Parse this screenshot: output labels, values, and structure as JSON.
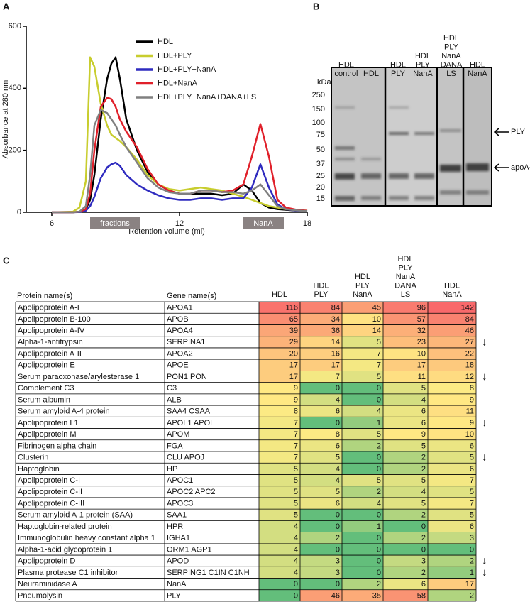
{
  "chart_data": {
    "type": "line",
    "panel_label": "A",
    "xlabel": "Retention volume (ml)",
    "ylabel": "Absorbance at 280 nm",
    "x": [
      6,
      7,
      7.3,
      7.6,
      7.8,
      8.0,
      8.3,
      8.6,
      8.8,
      9.0,
      9.2,
      9.5,
      10,
      10.5,
      11,
      11.5,
      12,
      12.5,
      13,
      13.5,
      14,
      14.5,
      15,
      15.4,
      15.8,
      16.2,
      16.6,
      17,
      17.5,
      18
    ],
    "series": [
      {
        "name": "HDL",
        "color": "#000000",
        "values": [
          0,
          0,
          2,
          10,
          40,
          120,
          300,
          430,
          480,
          500,
          430,
          300,
          200,
          130,
          90,
          70,
          60,
          60,
          60,
          60,
          55,
          60,
          90,
          70,
          30,
          15,
          10,
          8,
          5,
          5
        ]
      },
      {
        "name": "HDL+PLY",
        "color": "#c8cd2e",
        "values": [
          0,
          2,
          15,
          100,
          500,
          470,
          350,
          280,
          250,
          240,
          230,
          210,
          170,
          120,
          90,
          75,
          70,
          75,
          80,
          75,
          70,
          60,
          50,
          40,
          30,
          20,
          15,
          10,
          7,
          5
        ]
      },
      {
        "name": "HDL+PLY+NanA",
        "color": "#2f2bbf",
        "values": [
          0,
          0,
          1,
          5,
          20,
          50,
          110,
          145,
          155,
          160,
          150,
          120,
          90,
          70,
          55,
          45,
          40,
          40,
          45,
          45,
          40,
          45,
          45,
          80,
          155,
          80,
          25,
          10,
          5,
          3
        ]
      },
      {
        "name": "HDL+NanA",
        "color": "#e0202a",
        "values": [
          0,
          0,
          2,
          10,
          60,
          200,
          340,
          370,
          365,
          340,
          300,
          260,
          210,
          140,
          90,
          70,
          60,
          60,
          70,
          70,
          65,
          70,
          90,
          180,
          285,
          180,
          40,
          15,
          8,
          5
        ]
      },
      {
        "name": "HDL+PLY+NanA+DANA+LS",
        "color": "#808080",
        "values": [
          0,
          0,
          2,
          20,
          120,
          280,
          330,
          320,
          300,
          280,
          250,
          210,
          160,
          110,
          80,
          65,
          60,
          60,
          70,
          70,
          65,
          65,
          60,
          70,
          90,
          55,
          20,
          10,
          6,
          4
        ]
      }
    ],
    "xlim": [
      4.8,
      18
    ],
    "xticks": [
      6,
      12,
      18
    ],
    "ylim": [
      0,
      600
    ],
    "yticks": [
      0,
      200,
      400,
      600
    ],
    "annotations": [
      "fractions",
      "NanA"
    ]
  },
  "gel": {
    "panel_label": "B",
    "unit": "kDa",
    "markers": [
      250,
      150,
      100,
      75,
      50,
      37,
      25,
      20,
      15
    ],
    "lanes": [
      [
        "HDL",
        "control"
      ],
      [
        "HDL"
      ],
      [
        "HDL",
        "PLY"
      ],
      [
        "HDL",
        "PLY",
        "NanA"
      ],
      [
        "HDL",
        "PLY",
        "NanA",
        "DANA",
        "LS"
      ],
      [
        "HDL",
        "NanA"
      ]
    ],
    "arrows": [
      "PLY",
      "apoA-I"
    ]
  },
  "table": {
    "panel_label": "C",
    "name_header": "Protein name(s)",
    "gene_header": "Gene name(s)",
    "sample_headers": [
      [
        "HDL"
      ],
      [
        "HDL",
        "PLY"
      ],
      [
        "HDL",
        "PLY",
        "NanA"
      ],
      [
        "HDL",
        "PLY",
        "NanA",
        "DANA",
        "LS"
      ],
      [
        "HDL",
        "NanA"
      ]
    ],
    "rows": [
      {
        "protein": "Apolipoprotein A-I",
        "gene": "APOA1",
        "values": [
          116,
          84,
          45,
          96,
          142
        ]
      },
      {
        "protein": "Apolipoprotein B-100",
        "gene": "APOB",
        "values": [
          65,
          34,
          10,
          57,
          84
        ]
      },
      {
        "protein": "Apolipoprotein A-IV",
        "gene": "APOA4",
        "values": [
          39,
          36,
          14,
          32,
          46
        ]
      },
      {
        "protein": "Alpha-1-antitrypsin",
        "gene": "SERPINA1",
        "values": [
          29,
          14,
          5,
          23,
          27
        ],
        "flag": "↓"
      },
      {
        "protein": "Apolipoprotein A-II",
        "gene": "APOA2",
        "values": [
          20,
          16,
          7,
          10,
          22
        ]
      },
      {
        "protein": "Apolipoprotein E",
        "gene": "APOE",
        "values": [
          17,
          17,
          7,
          17,
          18
        ]
      },
      {
        "protein": "Serum paraoxonase/arylesterase 1",
        "gene": "PON1 PON",
        "values": [
          17,
          7,
          5,
          11,
          12
        ],
        "flag": "↓"
      },
      {
        "protein": "Complement C3",
        "gene": "C3",
        "values": [
          9,
          0,
          0,
          5,
          8
        ]
      },
      {
        "protein": "Serum albumin",
        "gene": "ALB",
        "values": [
          9,
          4,
          0,
          4,
          9
        ]
      },
      {
        "protein": "Serum amyloid A-4 protein",
        "gene": "SAA4 CSAA",
        "values": [
          8,
          6,
          4,
          6,
          11
        ]
      },
      {
        "protein": "Apolipoprotein L1",
        "gene": "APOL1 APOL",
        "values": [
          7,
          0,
          1,
          6,
          9
        ],
        "flag": "↓"
      },
      {
        "protein": "Apolipoprotein M",
        "gene": "APOM",
        "values": [
          7,
          8,
          5,
          9,
          10
        ]
      },
      {
        "protein": "Fibrinogen alpha chain",
        "gene": "FGA",
        "values": [
          7,
          6,
          2,
          5,
          6
        ]
      },
      {
        "protein": "Clusterin",
        "gene": "CLU APOJ",
        "values": [
          7,
          5,
          0,
          2,
          5
        ],
        "flag": "↓"
      },
      {
        "protein": "Haptoglobin",
        "gene": "HP",
        "values": [
          5,
          4,
          0,
          2,
          6
        ]
      },
      {
        "protein": "Apolipoprotein C-I",
        "gene": "APOC1",
        "values": [
          5,
          4,
          5,
          5,
          7
        ]
      },
      {
        "protein": "Apolipoprotein C-II",
        "gene": "APOC2 APC2",
        "values": [
          5,
          5,
          2,
          4,
          5
        ]
      },
      {
        "protein": "Apolipoprotein C-III",
        "gene": "APOC3",
        "values": [
          5,
          6,
          4,
          5,
          7
        ]
      },
      {
        "protein": "Serum amyloid A-1 protein (SAA)",
        "gene": "SAA1",
        "values": [
          5,
          0,
          0,
          2,
          5
        ]
      },
      {
        "protein": "Haptoglobin-related protein",
        "gene": "HPR",
        "values": [
          4,
          0,
          1,
          0,
          6
        ]
      },
      {
        "protein": "Immunoglobulin heavy constant alpha 1",
        "gene": "IGHA1",
        "values": [
          4,
          2,
          0,
          2,
          3
        ]
      },
      {
        "protein": "Alpha-1-acid glycoprotein 1",
        "gene": "ORM1 AGP1",
        "values": [
          4,
          0,
          0,
          0,
          0
        ]
      },
      {
        "protein": "Apolipoprotein D",
        "gene": "APOD",
        "values": [
          4,
          3,
          0,
          3,
          2
        ],
        "flag": "↓"
      },
      {
        "protein": "Plasma protease C1 inhibitor",
        "gene": "SERPING1 C1IN C1NH",
        "values": [
          4,
          3,
          0,
          2,
          1
        ],
        "flag": "↓"
      },
      {
        "protein": "Neuraminidase A",
        "gene": "NanA",
        "values": [
          0,
          0,
          2,
          6,
          17
        ]
      },
      {
        "protein": "Pneumolysin",
        "gene": "PLY",
        "values": [
          0,
          46,
          35,
          58,
          2
        ]
      }
    ]
  }
}
